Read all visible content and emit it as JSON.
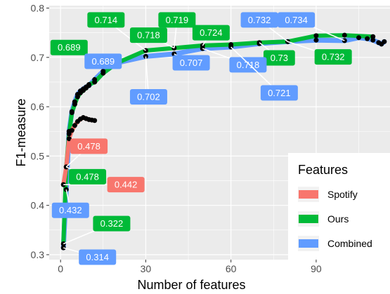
{
  "chart_data": {
    "type": "line",
    "xlabel": "Number of features",
    "ylabel": "F1-measure",
    "xlim": [
      -4,
      116
    ],
    "ylim": [
      0.29,
      0.805
    ],
    "x_ticks": [
      0,
      30,
      60,
      90
    ],
    "y_ticks": [
      0.3,
      0.4,
      0.5,
      0.6,
      0.7,
      0.8
    ],
    "x_tick_labels": [
      "0",
      "30",
      "60",
      "90"
    ],
    "y_tick_labels": [
      "0.3",
      "0.4",
      "0.5",
      "0.6",
      "0.7",
      "0.8"
    ],
    "grid": true,
    "legend": {
      "title": "Features",
      "position": "bottom-right",
      "entries": [
        "Spotify",
        "Ours",
        "Combined"
      ]
    },
    "colors": {
      "Spotify": "#F8766D",
      "Ours": "#00BA38",
      "Combined": "#619CFF",
      "panel": "#EBEBEB",
      "point": "#000000"
    },
    "series": [
      {
        "name": "Spotify",
        "x": [
          1,
          2,
          3,
          4,
          5,
          6,
          7,
          8,
          9,
          10,
          11,
          12
        ],
        "y": [
          0.442,
          0.478,
          0.535,
          0.552,
          0.562,
          0.57,
          0.575,
          0.578,
          0.576,
          0.574,
          0.573,
          0.572
        ]
      },
      {
        "name": "Ours",
        "x": [
          1,
          2,
          3,
          4,
          5,
          6,
          7,
          8,
          9,
          10,
          12,
          15,
          20,
          30,
          40,
          50,
          60,
          70,
          80,
          90,
          100,
          110
        ],
        "y": [
          0.322,
          0.478,
          0.545,
          0.588,
          0.605,
          0.62,
          0.628,
          0.633,
          0.638,
          0.645,
          0.65,
          0.668,
          0.689,
          0.714,
          0.719,
          0.724,
          0.726,
          0.73,
          0.732,
          0.744,
          0.745,
          0.742
        ]
      },
      {
        "name": "Combined",
        "x": [
          1,
          2,
          3,
          4,
          5,
          6,
          7,
          8,
          9,
          10,
          12,
          15,
          20,
          30,
          40,
          50,
          60,
          70,
          80,
          90,
          100,
          105,
          108,
          110,
          112,
          113,
          114
        ],
        "y": [
          0.314,
          0.432,
          0.55,
          0.59,
          0.61,
          0.625,
          0.632,
          0.636,
          0.64,
          0.643,
          0.655,
          0.672,
          0.689,
          0.702,
          0.707,
          0.718,
          0.721,
          0.728,
          0.732,
          0.735,
          0.734,
          0.74,
          0.738,
          0.735,
          0.73,
          0.727,
          0.732
        ]
      }
    ],
    "annotations": [
      {
        "text": "0.478",
        "series": "Spotify",
        "x": 10,
        "y": 0.52
      },
      {
        "text": "0.442",
        "series": "Spotify",
        "x": 23,
        "y": 0.442
      },
      {
        "text": "0.478",
        "series": "Ours",
        "x": 9.5,
        "y": 0.458
      },
      {
        "text": "0.322",
        "series": "Ours",
        "x": 18,
        "y": 0.363
      },
      {
        "text": "0.689",
        "series": "Ours",
        "x": 3,
        "y": 0.72
      },
      {
        "text": "0.714",
        "series": "Ours",
        "x": 16,
        "y": 0.776
      },
      {
        "text": "0.718",
        "series": "Ours",
        "x": 31,
        "y": 0.745
      },
      {
        "text": "0.719",
        "series": "Ours",
        "x": 41,
        "y": 0.776
      },
      {
        "text": "0.724",
        "series": "Ours",
        "x": 53,
        "y": 0.75
      },
      {
        "text": "0.73",
        "series": "Ours",
        "x": 77,
        "y": 0.699
      },
      {
        "text": "0.732",
        "series": "Ours",
        "x": 96,
        "y": 0.701
      },
      {
        "text": "0.432",
        "series": "Combined",
        "x": 3.5,
        "y": 0.39
      },
      {
        "text": "0.314",
        "series": "Combined",
        "x": 13,
        "y": 0.295
      },
      {
        "text": "0.689",
        "series": "Combined",
        "x": 15,
        "y": 0.692
      },
      {
        "text": "0.702",
        "series": "Combined",
        "x": 31,
        "y": 0.62
      },
      {
        "text": "0.707",
        "series": "Combined",
        "x": 46,
        "y": 0.689
      },
      {
        "text": "0.718",
        "series": "Combined",
        "x": 66,
        "y": 0.685
      },
      {
        "text": "0.721",
        "series": "Combined",
        "x": 77,
        "y": 0.628
      },
      {
        "text": "0.732",
        "series": "Combined",
        "x": 70,
        "y": 0.776
      },
      {
        "text": "0.734",
        "series": "Combined",
        "x": 83,
        "y": 0.776
      }
    ]
  }
}
